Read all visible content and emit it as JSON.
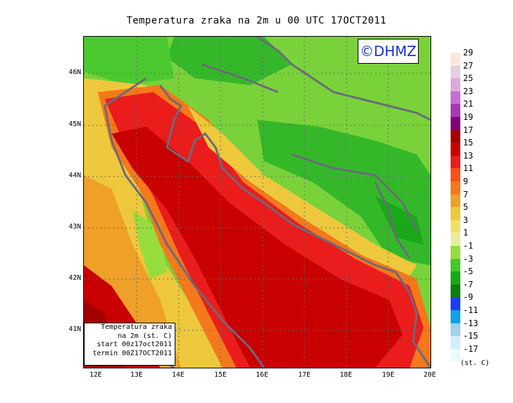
{
  "title": "Temperatura zraka na 2m u 00 UTC 17OCT2011",
  "logo": "©DHMZ",
  "info_box": {
    "line1": "Temperatura zraka",
    "line2": "na 2m (st. C)",
    "line3": "start 00z17oct2011",
    "line4": "termin 00Z17OCT2011"
  },
  "lat_labels": [
    "46N",
    "45N",
    "44N",
    "43N",
    "42N",
    "41N"
  ],
  "lon_labels": [
    "12E",
    "13E",
    "14E",
    "15E",
    "16E",
    "17E",
    "18E",
    "19E",
    "20E"
  ],
  "legend": {
    "labels": [
      "29",
      "27",
      "25",
      "23",
      "21",
      "19",
      "17",
      "15",
      "13",
      "11",
      "9",
      "7",
      "5",
      "3",
      "1",
      "-1",
      "-3",
      "-5",
      "-7",
      "-9",
      "-11",
      "-13",
      "-15",
      "-17"
    ],
    "unit": "(st. C)",
    "colors": [
      "#fbe8dc",
      "#e8cde0",
      "#dcaad8",
      "#c86ed0",
      "#a838b8",
      "#800078",
      "#a50000",
      "#c80000",
      "#ea1c1c",
      "#f85018",
      "#f4781c",
      "#eea028",
      "#eec83c",
      "#f0e06a",
      "#e6f09c",
      "#96dc3c",
      "#46c82c",
      "#18a818",
      "#0c800c",
      "#1e3cff",
      "#14a0e6",
      "#a0d2ea",
      "#d2eef8",
      "#ecfafc"
    ]
  }
}
